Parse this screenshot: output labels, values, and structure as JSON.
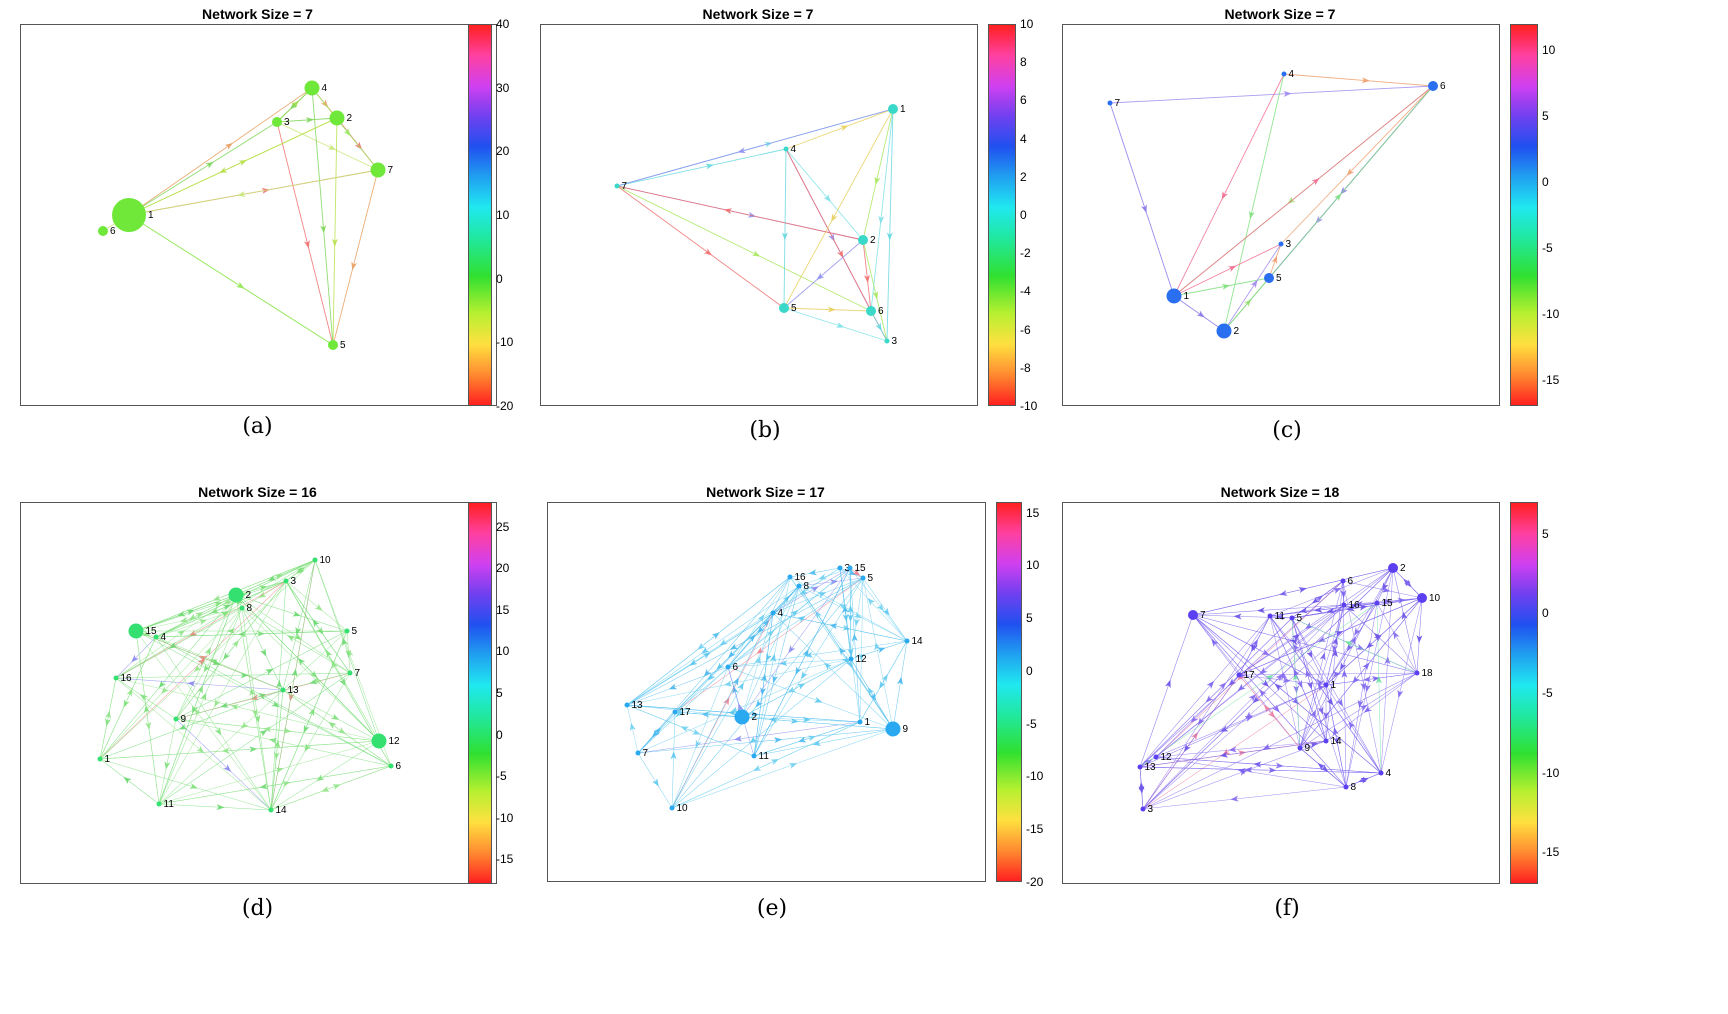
{
  "panels": [
    {
      "id": "a",
      "title": "Network Size = 7",
      "caption": "(a)",
      "colorbar_ticks": [
        "40",
        "30",
        "20",
        "10",
        "0",
        "-10",
        "-20"
      ],
      "colorbar_range": [
        -20,
        40
      ],
      "node_color": "#6fe83a",
      "edge_colors": [
        "#b8e04a",
        "#7fd65a",
        "#e8a060",
        "#f07070",
        "#9be860",
        "#c8e878"
      ],
      "nodes": [
        {
          "label": "1",
          "size": "large"
        },
        {
          "label": "2",
          "size": "medium"
        },
        {
          "label": "3",
          "size": "small"
        },
        {
          "label": "4",
          "size": "medium"
        },
        {
          "label": "5",
          "size": "small"
        },
        {
          "label": "6",
          "size": "small"
        },
        {
          "label": "7",
          "size": "medium"
        }
      ]
    },
    {
      "id": "b",
      "title": "Network Size = 7",
      "caption": "(b)",
      "colorbar_ticks": [
        "10",
        "8",
        "6",
        "4",
        "2",
        "0",
        "-2",
        "-4",
        "-6",
        "-8",
        "-10"
      ],
      "colorbar_range": [
        -10,
        10
      ],
      "node_color": "#3ad8c8",
      "edge_colors": [
        "#7de0e8",
        "#66d8e0",
        "#9090f0",
        "#f07070",
        "#a8e860",
        "#e8d060"
      ],
      "nodes": [
        {
          "label": "1",
          "size": "small"
        },
        {
          "label": "2",
          "size": "small"
        },
        {
          "label": "3",
          "size": "tiny"
        },
        {
          "label": "4",
          "size": "tiny"
        },
        {
          "label": "5",
          "size": "small"
        },
        {
          "label": "6",
          "size": "small"
        },
        {
          "label": "7",
          "size": "tiny"
        }
      ]
    },
    {
      "id": "c",
      "title": "Network Size = 7",
      "caption": "(c)",
      "colorbar_ticks": [
        "10",
        "5",
        "0",
        "-5",
        "-10",
        "-15"
      ],
      "colorbar_range": [
        -17,
        12
      ],
      "node_color": "#2a6ff0",
      "edge_colors": [
        "#a088f0",
        "#8878e8",
        "#f0a070",
        "#80e080",
        "#f07090",
        "#a0e070"
      ],
      "nodes": [
        {
          "label": "1",
          "size": "medium"
        },
        {
          "label": "2",
          "size": "medium"
        },
        {
          "label": "3",
          "size": "tiny"
        },
        {
          "label": "4",
          "size": "tiny"
        },
        {
          "label": "5",
          "size": "small"
        },
        {
          "label": "6",
          "size": "small"
        },
        {
          "label": "7",
          "size": "tiny"
        }
      ]
    },
    {
      "id": "d",
      "title": "Network Size = 16",
      "caption": "(d)",
      "colorbar_ticks": [
        "25",
        "20",
        "15",
        "10",
        "5",
        "0",
        "-5",
        "-10",
        "-15"
      ],
      "colorbar_range": [
        -18,
        28
      ],
      "node_color": "#34e070",
      "edge_colors": [
        "#7ee07a",
        "#92e48a",
        "#6ad870",
        "#f08080",
        "#8888f0",
        "#d8e870"
      ],
      "nodes": [
        {
          "label": "1",
          "size": "tiny"
        },
        {
          "label": "2",
          "size": "medium"
        },
        {
          "label": "3",
          "size": "tiny"
        },
        {
          "label": "4",
          "size": "tiny"
        },
        {
          "label": "5",
          "size": "tiny"
        },
        {
          "label": "6",
          "size": "tiny"
        },
        {
          "label": "7",
          "size": "tiny"
        },
        {
          "label": "8",
          "size": "tiny"
        },
        {
          "label": "9",
          "size": "tiny"
        },
        {
          "label": "10",
          "size": "tiny"
        },
        {
          "label": "11",
          "size": "tiny"
        },
        {
          "label": "12",
          "size": "medium"
        },
        {
          "label": "13",
          "size": "tiny"
        },
        {
          "label": "14",
          "size": "tiny"
        },
        {
          "label": "15",
          "size": "medium"
        },
        {
          "label": "16",
          "size": "tiny"
        }
      ]
    },
    {
      "id": "e",
      "title": "Network Size = 17",
      "caption": "(e)",
      "colorbar_ticks": [
        "15",
        "10",
        "5",
        "0",
        "-5",
        "-10",
        "-15",
        "-20"
      ],
      "colorbar_range": [
        -20,
        16
      ],
      "node_color": "#2aa8f0",
      "edge_colors": [
        "#5cc8f0",
        "#70d0f0",
        "#48b8ee",
        "#8888f0",
        "#f08090",
        "#e8e070"
      ],
      "nodes": [
        {
          "label": "1",
          "size": "tiny"
        },
        {
          "label": "2",
          "size": "medium"
        },
        {
          "label": "3",
          "size": "tiny"
        },
        {
          "label": "4",
          "size": "tiny"
        },
        {
          "label": "5",
          "size": "tiny"
        },
        {
          "label": "6",
          "size": "tiny"
        },
        {
          "label": "7",
          "size": "tiny"
        },
        {
          "label": "8",
          "size": "tiny"
        },
        {
          "label": "9",
          "size": "medium"
        },
        {
          "label": "10",
          "size": "tiny"
        },
        {
          "label": "11",
          "size": "tiny"
        },
        {
          "label": "12",
          "size": "tiny"
        },
        {
          "label": "13",
          "size": "tiny"
        },
        {
          "label": "14",
          "size": "tiny"
        },
        {
          "label": "15",
          "size": "tiny"
        },
        {
          "label": "16",
          "size": "tiny"
        },
        {
          "label": "17",
          "size": "tiny"
        }
      ]
    },
    {
      "id": "f",
      "title": "Network Size = 18",
      "caption": "(f)",
      "colorbar_ticks": [
        "5",
        "0",
        "-5",
        "-10",
        "-15"
      ],
      "colorbar_range": [
        -17,
        7
      ],
      "node_color": "#5a40f0",
      "edge_colors": [
        "#7a60f0",
        "#8468f0",
        "#6a50e8",
        "#f080a0",
        "#70e0a0",
        "#9a80f0"
      ],
      "nodes": [
        {
          "label": "1",
          "size": "tiny"
        },
        {
          "label": "2",
          "size": "small"
        },
        {
          "label": "3",
          "size": "tiny"
        },
        {
          "label": "4",
          "size": "tiny"
        },
        {
          "label": "5",
          "size": "tiny"
        },
        {
          "label": "6",
          "size": "tiny"
        },
        {
          "label": "7",
          "size": "small"
        },
        {
          "label": "8",
          "size": "tiny"
        },
        {
          "label": "9",
          "size": "tiny"
        },
        {
          "label": "10",
          "size": "small"
        },
        {
          "label": "11",
          "size": "tiny"
        },
        {
          "label": "12",
          "size": "tiny"
        },
        {
          "label": "13",
          "size": "tiny"
        },
        {
          "label": "14",
          "size": "tiny"
        },
        {
          "label": "15",
          "size": "tiny"
        },
        {
          "label": "16",
          "size": "tiny"
        },
        {
          "label": "17",
          "size": "tiny"
        },
        {
          "label": "18",
          "size": "tiny"
        }
      ]
    }
  ]
}
